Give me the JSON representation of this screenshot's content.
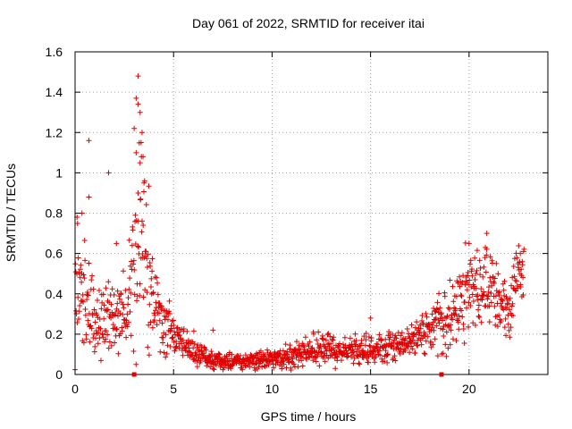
{
  "chart_data": {
    "type": "scatter",
    "title": "Day 061 of 2022, SRMTID for receiver itai",
    "xlabel": "GPS time / hours",
    "ylabel": "SRMTID / TECUs",
    "xlim": [
      0,
      24
    ],
    "ylim": [
      0,
      1.6
    ],
    "xticks": [
      0,
      5,
      10,
      15,
      20
    ],
    "xtick_labels": [
      "0",
      "5",
      "10",
      "15",
      "20"
    ],
    "yticks": [
      0,
      0.2,
      0.4,
      0.6,
      0.8,
      1,
      1.2,
      1.4,
      1.6
    ],
    "ytick_labels": [
      "0",
      "0.2",
      "0.4",
      "0.6",
      "0.8",
      "1",
      "1.2",
      "1.4",
      "1.6"
    ],
    "grid": true,
    "marker": "plus",
    "color": "#e00000",
    "axis_markers_x": [
      3.0,
      18.6
    ],
    "series": [
      {
        "name": "SRMTID",
        "profile": [
          [
            0.0,
            0.45,
            0.22
          ],
          [
            0.5,
            0.35,
            0.2
          ],
          [
            1.0,
            0.25,
            0.12
          ],
          [
            1.5,
            0.3,
            0.12
          ],
          [
            2.0,
            0.25,
            0.12
          ],
          [
            2.5,
            0.35,
            0.15
          ],
          [
            3.0,
            0.45,
            0.35
          ],
          [
            3.3,
            0.75,
            0.4
          ],
          [
            3.6,
            0.55,
            0.3
          ],
          [
            4.0,
            0.35,
            0.15
          ],
          [
            4.5,
            0.25,
            0.1
          ],
          [
            5.0,
            0.18,
            0.07
          ],
          [
            6.0,
            0.12,
            0.05
          ],
          [
            7.0,
            0.07,
            0.03
          ],
          [
            8.0,
            0.06,
            0.03
          ],
          [
            9.0,
            0.07,
            0.03
          ],
          [
            10.0,
            0.08,
            0.03
          ],
          [
            11.0,
            0.09,
            0.04
          ],
          [
            12.0,
            0.12,
            0.05
          ],
          [
            13.0,
            0.13,
            0.05
          ],
          [
            14.0,
            0.11,
            0.05
          ],
          [
            15.0,
            0.12,
            0.05
          ],
          [
            16.0,
            0.14,
            0.05
          ],
          [
            17.0,
            0.18,
            0.06
          ],
          [
            18.0,
            0.22,
            0.08
          ],
          [
            18.5,
            0.26,
            0.1
          ],
          [
            19.0,
            0.3,
            0.12
          ],
          [
            19.5,
            0.35,
            0.12
          ],
          [
            20.0,
            0.45,
            0.15
          ],
          [
            20.5,
            0.4,
            0.15
          ],
          [
            21.0,
            0.45,
            0.15
          ],
          [
            21.5,
            0.35,
            0.12
          ],
          [
            22.0,
            0.3,
            0.1
          ],
          [
            22.5,
            0.5,
            0.1
          ],
          [
            22.8,
            0.48,
            0.08
          ]
        ],
        "outliers": [
          [
            0.7,
            1.16
          ],
          [
            0.7,
            0.88
          ],
          [
            1.7,
            1.0
          ],
          [
            3.2,
            1.48
          ],
          [
            3.1,
            1.37
          ],
          [
            3.2,
            1.34
          ],
          [
            3.3,
            1.3
          ],
          [
            3.0,
            1.22
          ],
          [
            3.4,
            1.2
          ],
          [
            3.35,
            1.15
          ],
          [
            3.1,
            1.1
          ],
          [
            3.45,
            1.08
          ],
          [
            3.3,
            1.05
          ],
          [
            3.5,
            0.95
          ],
          [
            3.2,
            0.9
          ],
          [
            2.1,
            0.65
          ],
          [
            0.35,
            0.8
          ],
          [
            0.1,
            0.78
          ],
          [
            7.0,
            0.22
          ],
          [
            15.0,
            0.28
          ],
          [
            20.0,
            0.65
          ],
          [
            20.9,
            0.7
          ],
          [
            22.6,
            0.6
          ]
        ]
      }
    ]
  }
}
